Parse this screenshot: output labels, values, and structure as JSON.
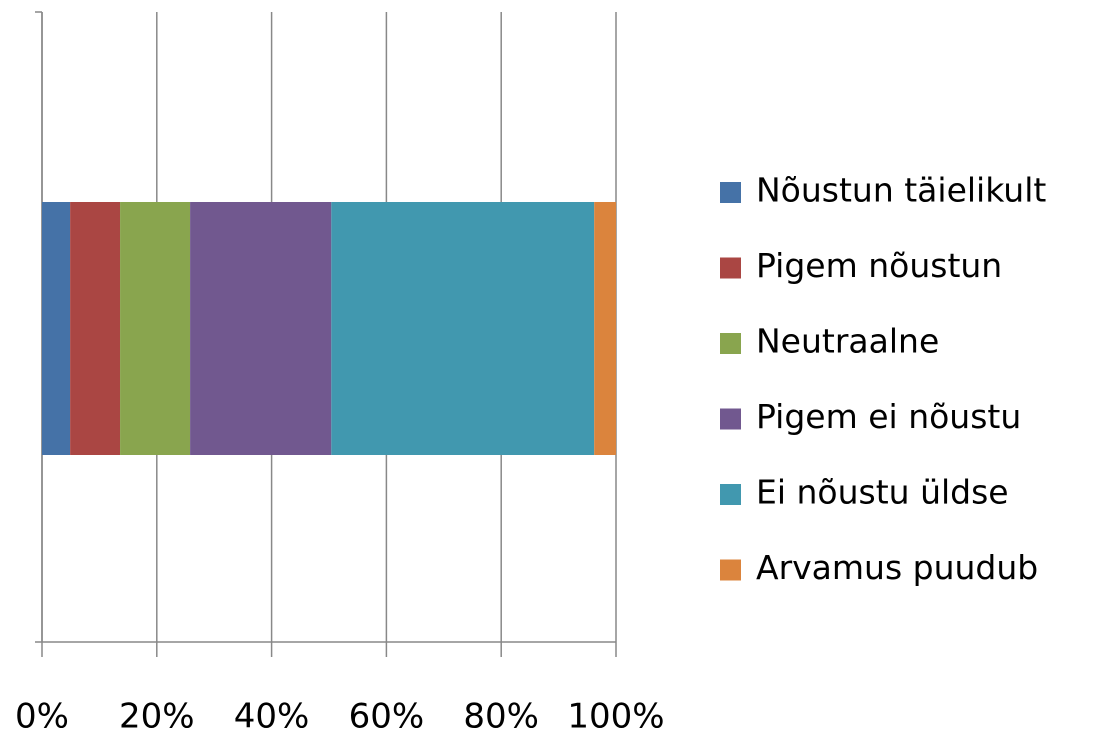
{
  "chart_data": {
    "type": "stacked_bar_horizontal",
    "series": [
      {
        "name": "Nõustun täielikult",
        "color": "#4572a7",
        "values": [
          4.9
        ]
      },
      {
        "name": "Pigem nõustun",
        "color": "#aa4643",
        "values": [
          8.7
        ]
      },
      {
        "name": "Neutraalne",
        "color": "#89a54e",
        "values": [
          12.2
        ]
      },
      {
        "name": "Pigem ei nõustu",
        "color": "#71588f",
        "values": [
          24.6
        ]
      },
      {
        "name": "Ei nõustu üldse",
        "color": "#4198af",
        "values": [
          45.8
        ]
      },
      {
        "name": "Arvamus puudub",
        "color": "#db843d",
        "values": [
          3.8
        ]
      }
    ],
    "xlim": [
      0,
      100
    ],
    "xticks": [
      {
        "value": 0,
        "label": "0%"
      },
      {
        "value": 20,
        "label": "20%"
      },
      {
        "value": 40,
        "label": "40%"
      },
      {
        "value": 60,
        "label": "60%"
      },
      {
        "value": 80,
        "label": "80%"
      },
      {
        "value": 100,
        "label": "100%"
      }
    ],
    "grid": true,
    "legend": "right"
  }
}
